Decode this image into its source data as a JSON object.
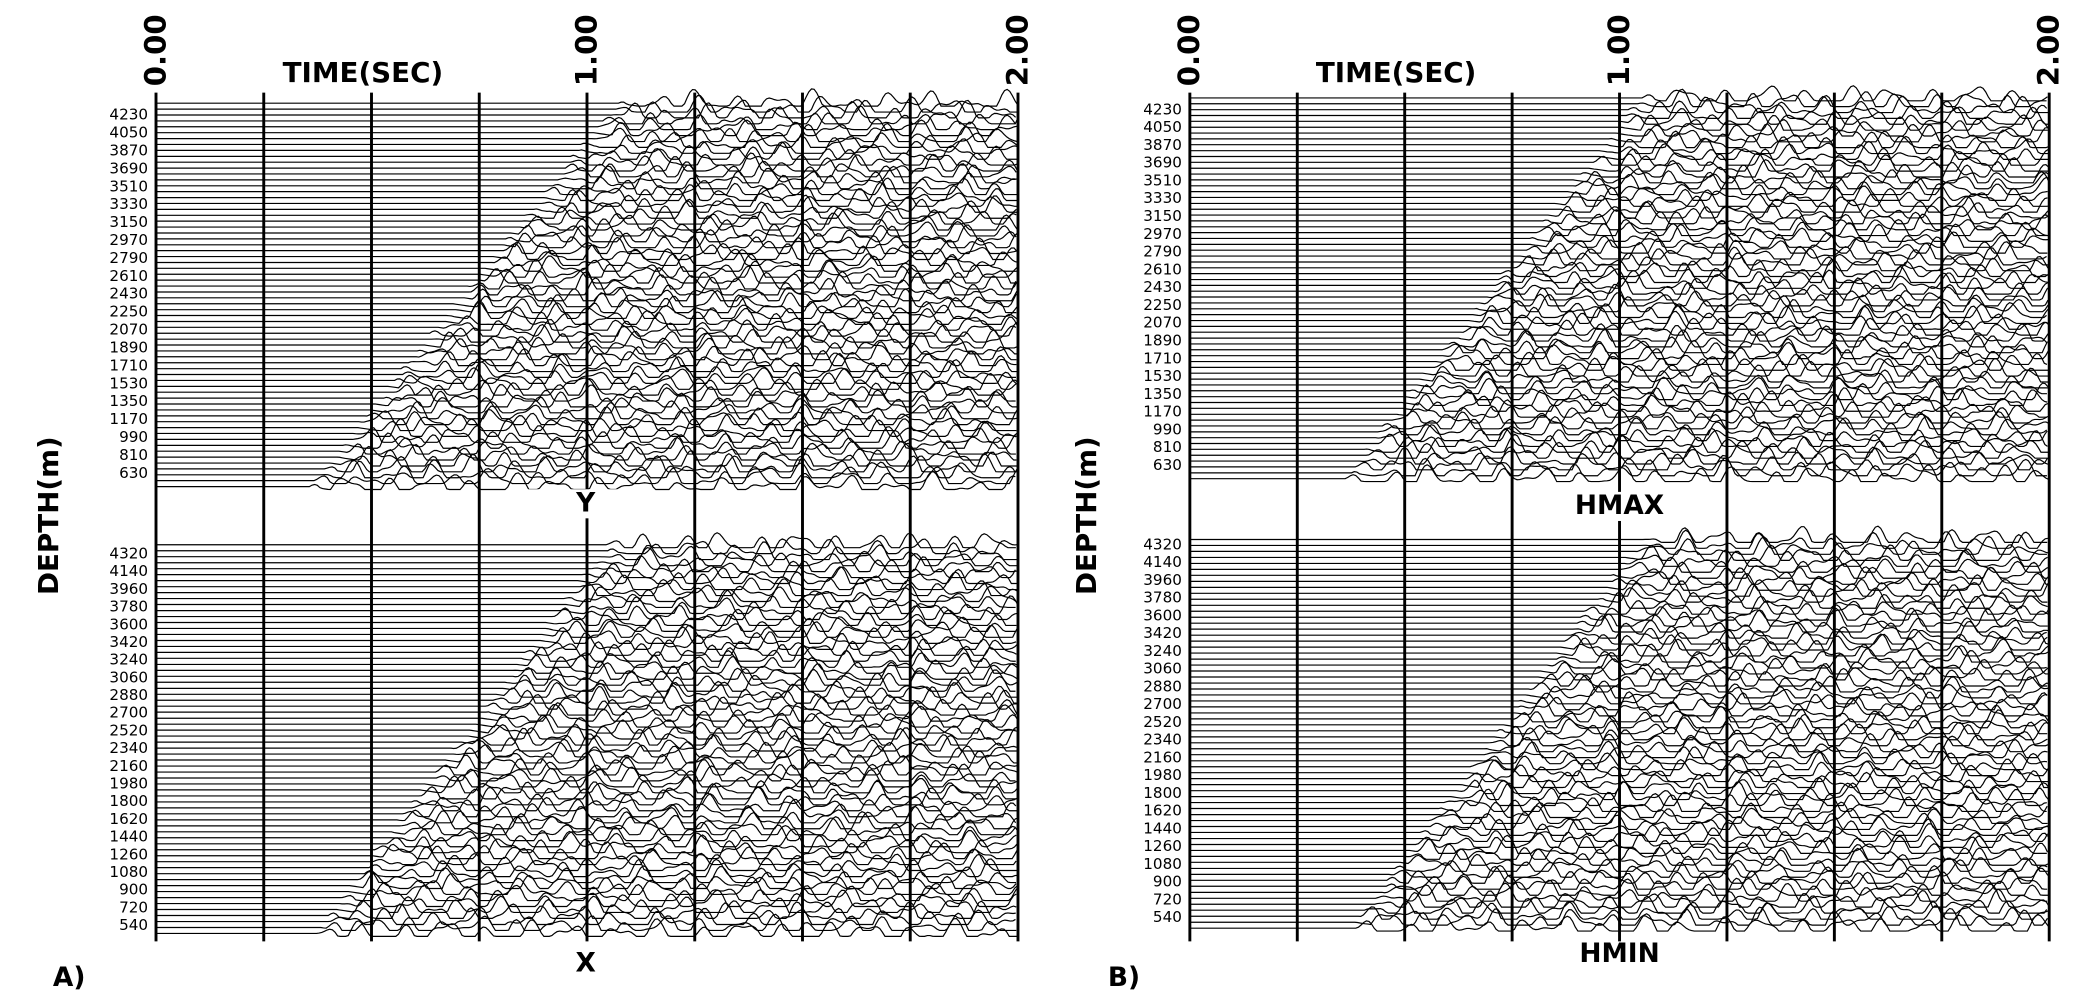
{
  "panels": [
    {
      "label": "A)",
      "time_title": "TIME(SEC)",
      "time_ticks": [
        "0.00",
        "1.00",
        "2.00"
      ],
      "depth_title": "DEPTH(m)",
      "sections": [
        {
          "name": "Y",
          "depths": [
            4230,
            4050,
            3870,
            3690,
            3510,
            3330,
            3150,
            2970,
            2790,
            2610,
            2430,
            2250,
            2070,
            1890,
            1710,
            1530,
            1350,
            1170,
            990,
            810,
            630
          ]
        },
        {
          "name": "X",
          "depths": [
            4320,
            4140,
            3960,
            3780,
            3600,
            3420,
            3240,
            3060,
            2880,
            2700,
            2520,
            2340,
            2160,
            1980,
            1800,
            1620,
            1440,
            1260,
            1080,
            900,
            720,
            540
          ]
        }
      ]
    },
    {
      "label": "B)",
      "time_title": "TIME(SEC)",
      "time_ticks": [
        "0.00",
        "1.00",
        "2.00"
      ],
      "depth_title": "DEPTH(m)",
      "sections": [
        {
          "name": "HMAX",
          "depths": [
            4230,
            4050,
            3870,
            3690,
            3510,
            3330,
            3150,
            2970,
            2790,
            2610,
            2430,
            2250,
            2070,
            1890,
            1710,
            1530,
            1350,
            1170,
            990,
            810,
            630
          ]
        },
        {
          "name": "HMIN",
          "depths": [
            4320,
            4140,
            3960,
            3780,
            3600,
            3420,
            3240,
            3060,
            2880,
            2700,
            2520,
            2340,
            2160,
            1980,
            1800,
            1620,
            1440,
            1260,
            1080,
            900,
            720,
            540
          ]
        }
      ]
    }
  ]
}
